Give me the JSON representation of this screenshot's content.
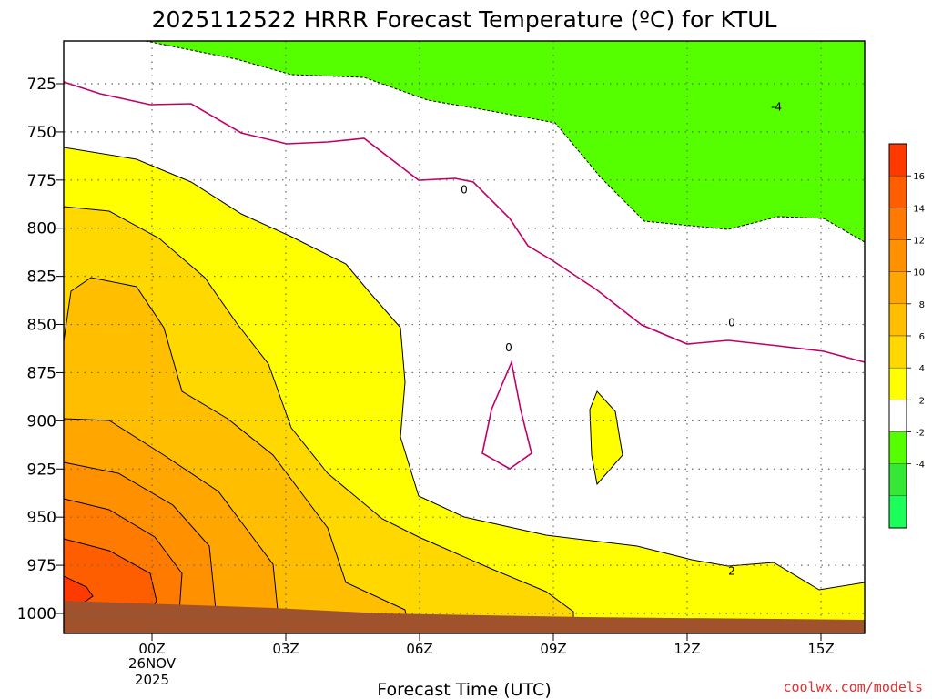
{
  "chart_data": {
    "type": "time-height contour",
    "title": "2025112522 HRRR Forecast Temperature (ºC) for KTUL",
    "xlabel": "Forecast Time (UTC)",
    "x_ticks": [
      "00Z",
      "03Z",
      "06Z",
      "09Z",
      "12Z",
      "15Z"
    ],
    "x_date_line1": "26NOV",
    "x_date_line2": "2025",
    "y_ticks": [
      "725",
      "750",
      "775",
      "800",
      "825",
      "850",
      "875",
      "900",
      "925",
      "950",
      "975",
      "1000"
    ],
    "ylim": [
      1000,
      700
    ],
    "colorbar": {
      "labels": [
        "16",
        "14",
        "12",
        "10",
        "8",
        "6",
        "4",
        "2",
        "-2",
        "-4"
      ],
      "colors": [
        "#ff3a00",
        "#ff5e00",
        "#ff7a00",
        "#ff9000",
        "#ffa600",
        "#ffbe00",
        "#ffd800",
        "#ffff00",
        "#ffffff",
        "#55ff00",
        "#35e835",
        "#1cff5a"
      ]
    },
    "contour_labels": [
      {
        "value": "0",
        "time": "07Z",
        "pressure": 780
      },
      {
        "value": "0",
        "time": "13Z",
        "pressure": 849
      },
      {
        "value": "0",
        "time": "08Z",
        "pressure": 862
      },
      {
        "value": "-4",
        "time": "14Z",
        "pressure": 737
      },
      {
        "value": "2",
        "time": "13Z",
        "pressure": 978
      }
    ],
    "grid": true
  },
  "credit": "coolwx.com/models"
}
